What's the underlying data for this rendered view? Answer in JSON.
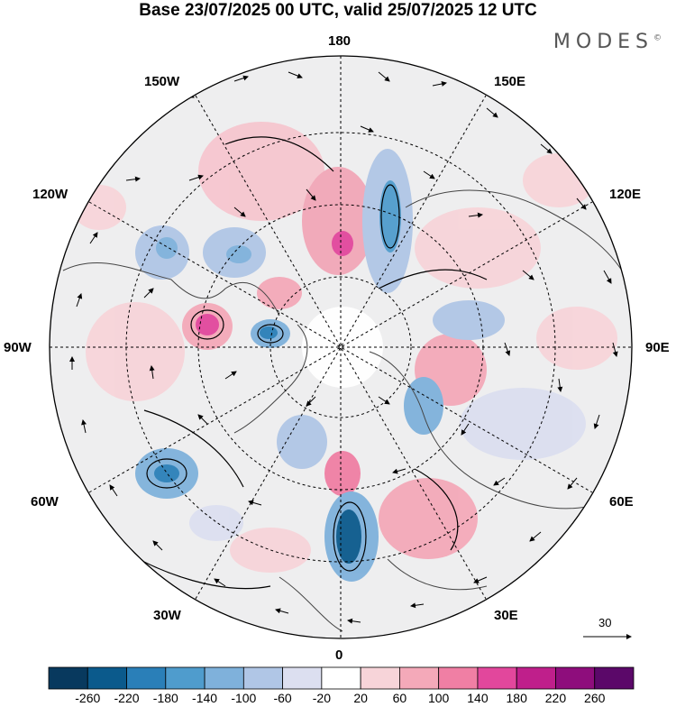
{
  "header": {
    "title": "Base 23/07/2025 00 UTC, valid 25/07/2025 12 UTC",
    "brand": "MODES",
    "brand_mark": "©"
  },
  "map": {
    "labels": {
      "top": "180",
      "bottom": "0",
      "left": "90W",
      "right": "90E",
      "upper_left_1": "150W",
      "upper_left_2": "120W",
      "lower_left_1": "60W",
      "lower_left_2": "30W",
      "upper_right_1": "150E",
      "upper_right_2": "120E",
      "lower_right_1": "60E",
      "lower_right_2": "30E"
    },
    "reference_vector": "30"
  },
  "colorbar": {
    "ticks": [
      "-260",
      "-220",
      "-180",
      "-140",
      "-100",
      "-60",
      "-20",
      "20",
      "60",
      "100",
      "140",
      "180",
      "220",
      "260"
    ],
    "colors": [
      "#08395e",
      "#0b5a8c",
      "#2a7fb8",
      "#4f9ccd",
      "#7fb1db",
      "#b0c6e6",
      "#dcdff0",
      "#ffffff",
      "#f7d4d9",
      "#f4a9b9",
      "#f07fa4",
      "#e2479c",
      "#bf1f8b",
      "#8e0d7c",
      "#5b0869"
    ]
  }
}
